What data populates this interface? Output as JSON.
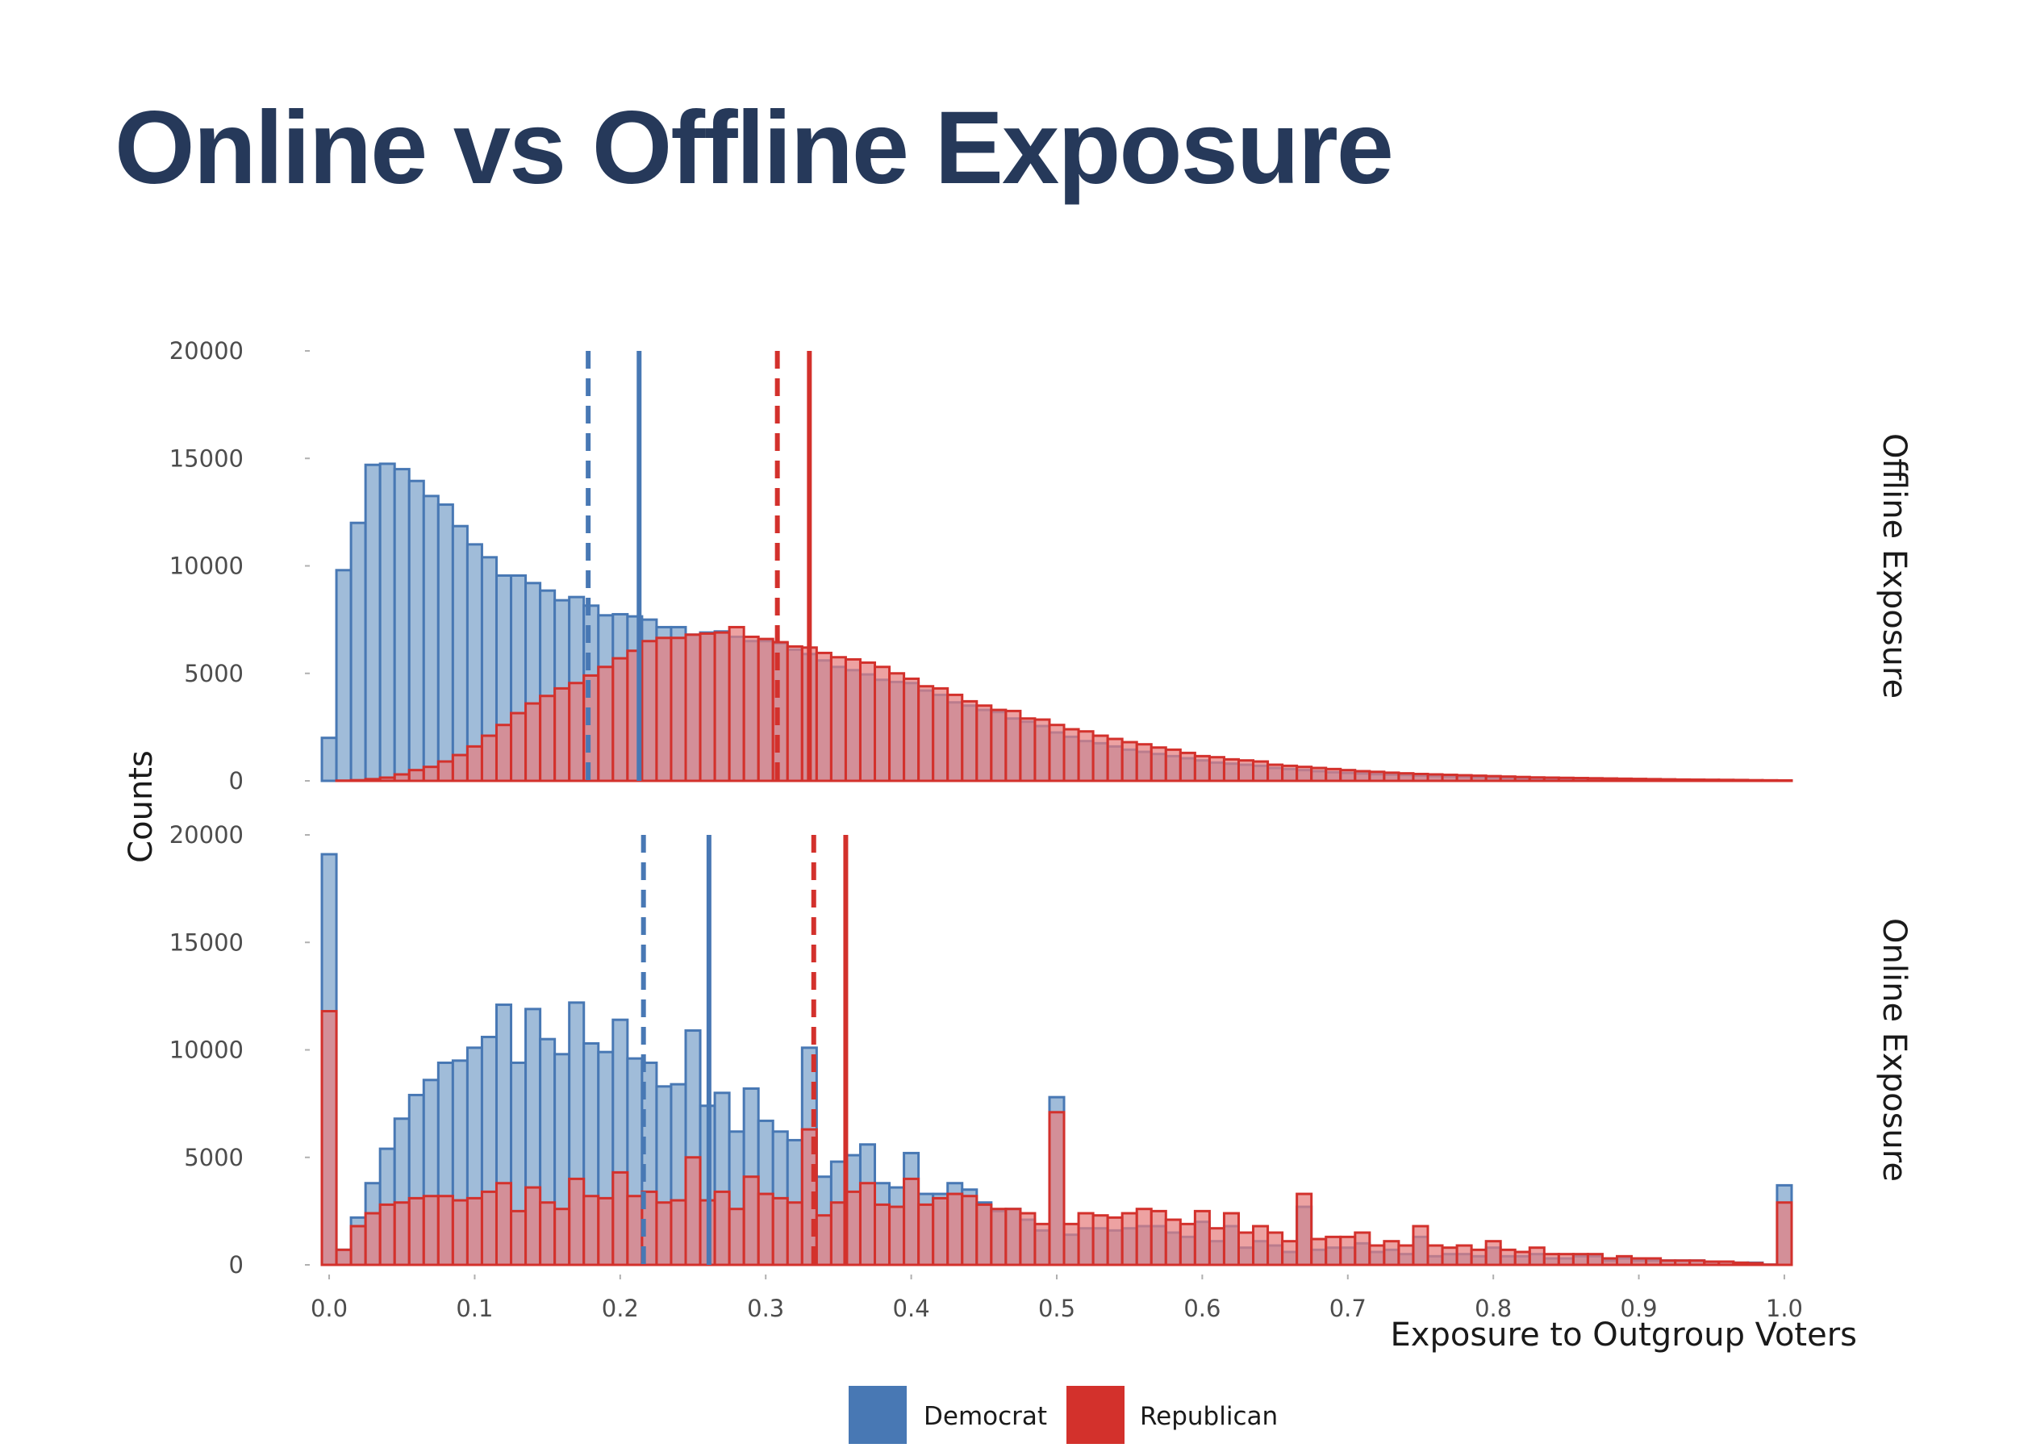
{
  "title": "Online vs Offline Exposure",
  "colors": {
    "democrat_fill": "#a0bcd9",
    "democrat_line": "#4878b4",
    "republican_fill": "#e67e7e",
    "republican_line": "#d3312c",
    "overlap_fill": "#b4707c",
    "title": "#26395a"
  },
  "chart_data": {
    "type": "histogram",
    "xlabel": "Exposure to Outgroup Voters",
    "ylabel": "Counts",
    "xlim": [
      -0.01,
      1.01
    ],
    "ylim": [
      0,
      20000
    ],
    "x_ticks": [
      0.0,
      0.1,
      0.2,
      0.3,
      0.4,
      0.5,
      0.6,
      0.7,
      0.8,
      0.9,
      1.0
    ],
    "x_tick_labels": [
      "0.0",
      "0.1",
      "0.2",
      "0.3",
      "0.4",
      "0.5",
      "0.6",
      "0.7",
      "0.8",
      "0.9",
      "1.0"
    ],
    "y_ticks": [
      0,
      5000,
      10000,
      15000,
      20000
    ],
    "y_tick_labels": [
      "0",
      "5000",
      "10000",
      "15000",
      "20000"
    ],
    "bins": {
      "start": -0.005,
      "width": 0.01,
      "count": 101
    },
    "legend": {
      "position": "bottom",
      "entries": [
        {
          "label": "Democrat",
          "color": "#4878b4"
        },
        {
          "label": "Republican",
          "color": "#d3312c"
        }
      ]
    },
    "facets": [
      {
        "label": "Offline Exposure",
        "series": [
          {
            "name": "Democrat",
            "mean": 0.213,
            "median": 0.178,
            "counts": [
              2000,
              9800,
              12000,
              14700,
              14750,
              14500,
              13950,
              13250,
              12850,
              11850,
              11000,
              10400,
              9550,
              9550,
              9200,
              8850,
              8400,
              8550,
              8150,
              7700,
              7750,
              7650,
              7500,
              7150,
              7150,
              6800,
              6900,
              6950,
              6700,
              6500,
              6500,
              6400,
              6100,
              5900,
              5600,
              5300,
              5150,
              4950,
              4700,
              4600,
              4550,
              4200,
              4000,
              3650,
              3500,
              3300,
              3200,
              2900,
              2750,
              2550,
              2250,
              2050,
              1850,
              1750,
              1600,
              1450,
              1350,
              1250,
              1150,
              1050,
              950,
              850,
              800,
              750,
              700,
              600,
              550,
              500,
              450,
              400,
              370,
              340,
              310,
              290,
              270,
              240,
              220,
              200,
              180,
              165,
              150,
              135,
              120,
              110,
              100,
              90,
              80,
              70,
              60,
              55,
              50,
              45,
              40,
              35,
              30,
              25,
              20,
              15,
              12,
              10,
              8
            ]
          },
          {
            "name": "Republican",
            "mean": 0.33,
            "median": 0.308,
            "counts": [
              0,
              10,
              30,
              80,
              150,
              300,
              500,
              650,
              900,
              1200,
              1600,
              2100,
              2600,
              3150,
              3600,
              3950,
              4300,
              4550,
              4900,
              5300,
              5700,
              6050,
              6500,
              6650,
              6650,
              6800,
              6850,
              6900,
              7150,
              6700,
              6600,
              6450,
              6250,
              6200,
              5950,
              5750,
              5650,
              5500,
              5300,
              5000,
              4750,
              4400,
              4300,
              4000,
              3700,
              3500,
              3300,
              3250,
              2900,
              2850,
              2600,
              2400,
              2300,
              2100,
              1950,
              1800,
              1700,
              1550,
              1450,
              1300,
              1150,
              1100,
              1000,
              950,
              900,
              750,
              700,
              650,
              600,
              550,
              500,
              450,
              420,
              380,
              350,
              320,
              300,
              280,
              260,
              240,
              220,
              200,
              180,
              160,
              150,
              140,
              130,
              120,
              110,
              100,
              90,
              80,
              70,
              60,
              55,
              50,
              45,
              40,
              30,
              25,
              20
            ]
          }
        ]
      },
      {
        "label": "Online Exposure",
        "series": [
          {
            "name": "Democrat",
            "mean": 0.261,
            "median": 0.216,
            "counts": [
              19100,
              700,
              2200,
              3800,
              5400,
              6800,
              7900,
              8600,
              9400,
              9500,
              10100,
              10600,
              12100,
              9400,
              11900,
              10500,
              9800,
              12200,
              10300,
              9900,
              11400,
              9600,
              9400,
              8300,
              8400,
              10900,
              7400,
              8000,
              6200,
              8200,
              6700,
              6200,
              5800,
              10100,
              4100,
              4800,
              5100,
              5600,
              3800,
              3600,
              5200,
              3300,
              3300,
              3800,
              3500,
              2900,
              2500,
              2600,
              2100,
              1600,
              7800,
              1400,
              1700,
              1700,
              1600,
              1700,
              1800,
              1800,
              1500,
              1300,
              2000,
              1100,
              1800,
              800,
              1100,
              900,
              600,
              2700,
              700,
              800,
              800,
              1000,
              600,
              700,
              500,
              1300,
              400,
              500,
              500,
              400,
              800,
              400,
              400,
              500,
              300,
              300,
              400,
              400,
              200,
              300,
              200,
              200,
              200,
              200,
              200,
              150,
              150,
              100,
              100,
              10,
              3700
            ]
          },
          {
            "name": "Republican",
            "mean": 0.355,
            "median": 0.333,
            "counts": [
              11800,
              700,
              1800,
              2400,
              2800,
              2900,
              3100,
              3200,
              3200,
              3000,
              3100,
              3400,
              3800,
              2500,
              3600,
              2900,
              2600,
              4000,
              3200,
              3100,
              4300,
              3200,
              3400,
              2900,
              3000,
              5000,
              3000,
              3400,
              2600,
              4100,
              3300,
              3100,
              2900,
              6300,
              2300,
              2900,
              3400,
              3800,
              2800,
              2700,
              4000,
              2800,
              3100,
              3300,
              3200,
              2800,
              2600,
              2600,
              2400,
              1900,
              7100,
              1900,
              2400,
              2300,
              2200,
              2400,
              2600,
              2500,
              2100,
              1900,
              2500,
              1700,
              2400,
              1500,
              1800,
              1500,
              1100,
              3300,
              1200,
              1300,
              1300,
              1500,
              900,
              1100,
              900,
              1800,
              900,
              800,
              900,
              700,
              1100,
              700,
              600,
              800,
              500,
              500,
              500,
              500,
              300,
              400,
              300,
              300,
              200,
              200,
              200,
              150,
              150,
              100,
              80,
              10,
              2900
            ]
          }
        ]
      }
    ]
  }
}
